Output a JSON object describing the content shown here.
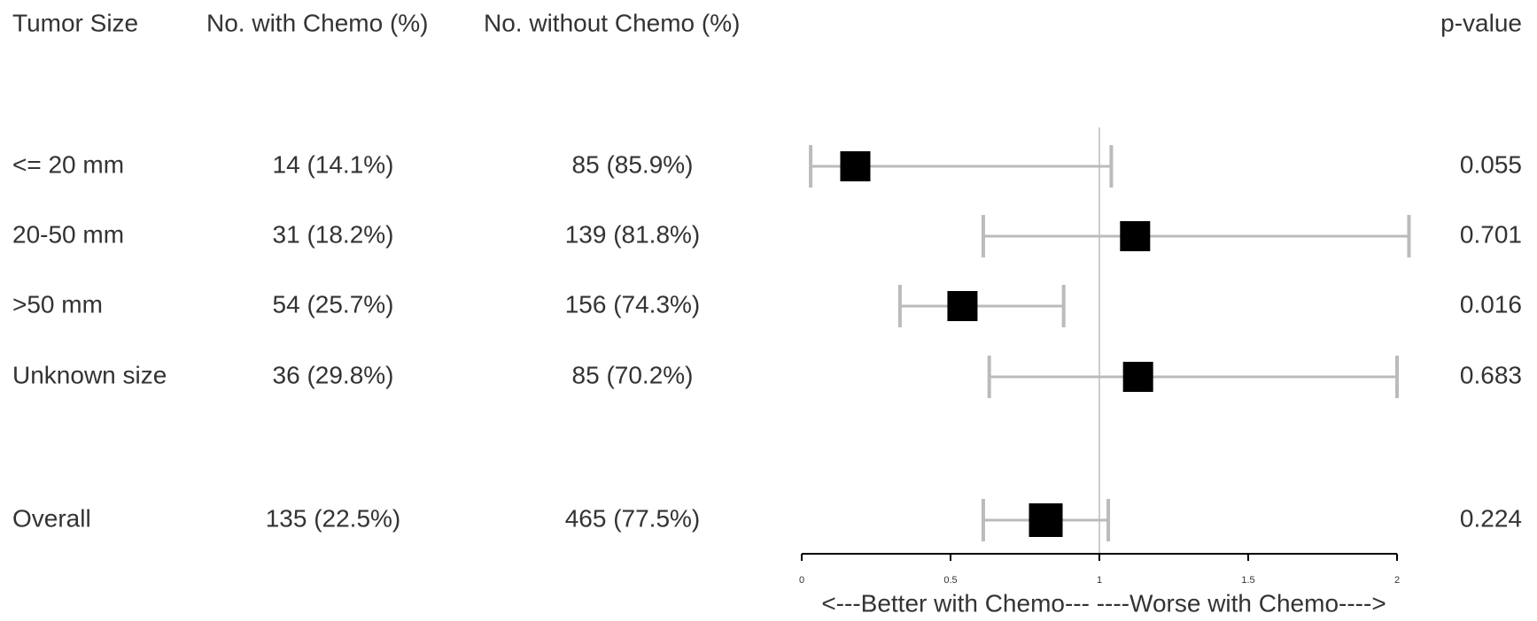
{
  "chart_data": {
    "type": "forest",
    "columns": [
      "Tumor Size",
      "No. with Chemo (%)",
      "No. without Chemo (%)",
      "p-value"
    ],
    "rows": [
      {
        "label": "<= 20 mm",
        "with_chemo": "14 (14.1%)",
        "without_chemo": "85 (85.9%)",
        "p_value": "0.055",
        "estimate": 0.18,
        "lower": 0.03,
        "upper": 1.04
      },
      {
        "label": "20-50 mm",
        "with_chemo": "31 (18.2%)",
        "without_chemo": "139 (81.8%)",
        "p_value": "0.701",
        "estimate": 1.12,
        "lower": 0.61,
        "upper": 2.04
      },
      {
        "label": ">50 mm",
        "with_chemo": "54 (25.7%)",
        "without_chemo": "156 (74.3%)",
        "p_value": "0.016",
        "estimate": 0.54,
        "lower": 0.33,
        "upper": 0.88
      },
      {
        "label": "Unknown size",
        "with_chemo": "36 (29.8%)",
        "without_chemo": "85 (70.2%)",
        "p_value": "0.683",
        "estimate": 1.13,
        "lower": 0.63,
        "upper": 2.0
      },
      {
        "label": "Overall",
        "with_chemo": "135 (22.5%)",
        "without_chemo": "465 (77.5%)",
        "p_value": "0.224",
        "estimate": 0.82,
        "lower": 0.61,
        "upper": 1.03
      }
    ],
    "xlim": [
      0,
      2
    ],
    "xticks": [
      0,
      0.5,
      1,
      1.5,
      2
    ],
    "ref_line": 1,
    "xlabel": "<---Better with Chemo--- ----Worse with Chemo---->",
    "marker_color": "#000000",
    "ci_color": "#bbbbbb"
  }
}
